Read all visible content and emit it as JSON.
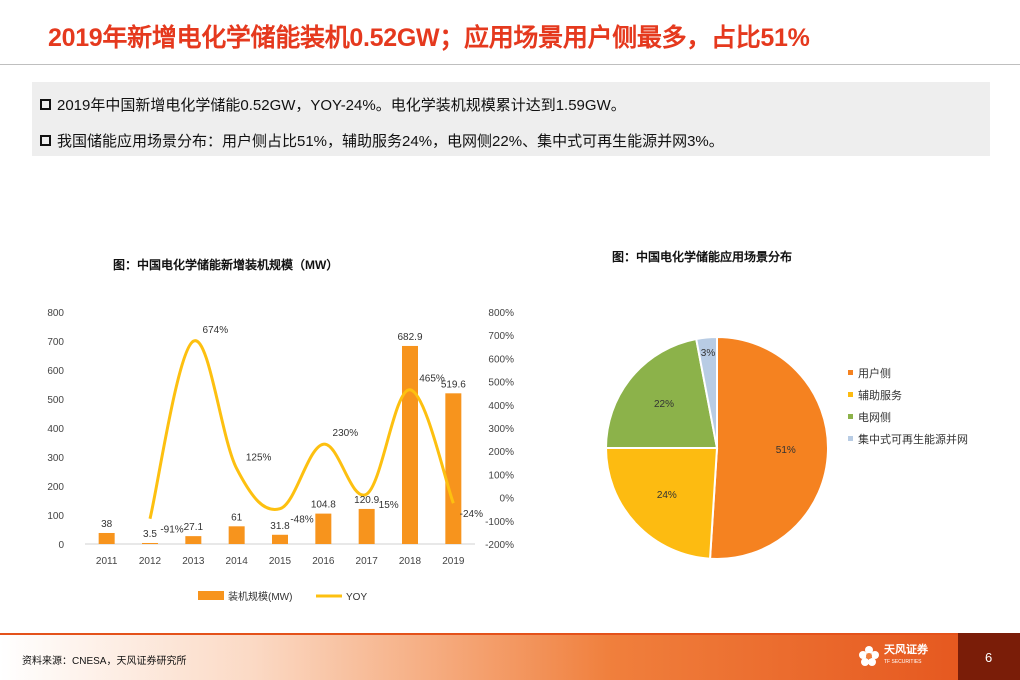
{
  "header": {
    "title": "2019年新增电化学储能装机0.52GW；应用场景用户侧最多，占比51%"
  },
  "bullets": [
    "2019年中国新增电化学储能0.52GW，YOY-24%。电化学装机规模累计达到1.59GW。",
    "我国储能应用场景分布：用户侧占比51%，辅助服务24%，电网侧22%、集中式可再生能源并网3%。"
  ],
  "footer": {
    "source": "资料来源：CNESA，天风证券研究所",
    "brand": "天风证券",
    "brand_sub": "TF SECURITIES",
    "page": "6"
  },
  "colors": {
    "title_red": "#e5391e",
    "bar_orange": "#f7941d",
    "line_yellow": "#fdc010"
  },
  "chart_data": [
    {
      "type": "bar",
      "title": "图：中国电化学储能新增装机规模（MW）",
      "categories": [
        "2011",
        "2012",
        "2013",
        "2014",
        "2015",
        "2016",
        "2017",
        "2018",
        "2019"
      ],
      "series": [
        {
          "name": "装机规模(MW)",
          "type": "bar",
          "axis": "left",
          "values": [
            38,
            3.5,
            27.1,
            61,
            31.8,
            104.8,
            120.9,
            682.9,
            519.6
          ],
          "labels": [
            "38",
            "3.5",
            "27.1",
            "61",
            "31.8",
            "104.8",
            "120.9",
            "682.9",
            "519.6"
          ]
        },
        {
          "name": "YOY",
          "type": "line",
          "axis": "right",
          "smooth": true,
          "values": [
            null,
            -91,
            674,
            125,
            -48,
            230,
            15,
            465,
            -24
          ],
          "labels": [
            "",
            "-91%",
            "674%",
            "125%",
            "-48%",
            "230%",
            "15%",
            "465%",
            "-24%"
          ]
        }
      ],
      "ylim": [
        0,
        800
      ],
      "yticks": [
        "0",
        "100",
        "200",
        "300",
        "400",
        "500",
        "600",
        "700",
        "800"
      ],
      "y2lim": [
        -200,
        800
      ],
      "y2ticks": [
        "-200%",
        "-100%",
        "0%",
        "100%",
        "200%",
        "300%",
        "400%",
        "500%",
        "600%",
        "700%",
        "800%"
      ],
      "legend": "bottom"
    },
    {
      "type": "pie",
      "title": "图：中国电化学储能应用场景分布",
      "slices": [
        {
          "label": "用户侧",
          "value": 51,
          "text": "51%",
          "color": "#f58220"
        },
        {
          "label": "辅助服务",
          "value": 24,
          "text": "24%",
          "color": "#fdbb11"
        },
        {
          "label": "电网侧",
          "value": 22,
          "text": "22%",
          "color": "#8cb24a"
        },
        {
          "label": "集中式可再生能源并网",
          "value": 3,
          "text": "3%",
          "color": "#b8cce4"
        }
      ],
      "legend": "right"
    }
  ]
}
